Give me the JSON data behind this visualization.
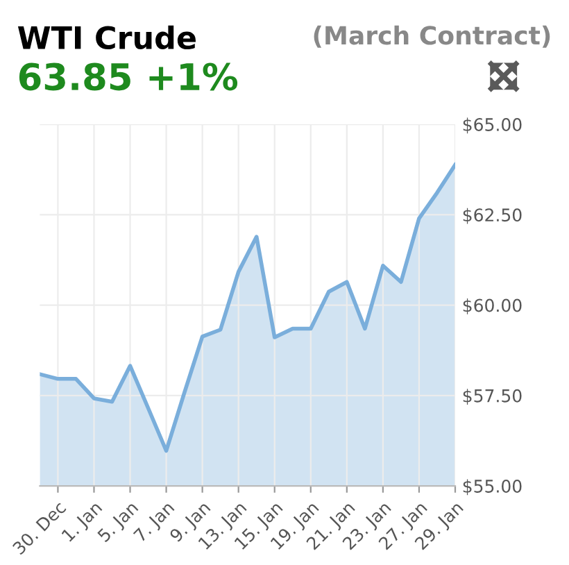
{
  "chart_data": {
    "type": "area",
    "title": "WTI Crude",
    "subtitle": "63.85 +1%",
    "annotations": [
      "(March Contract)"
    ],
    "categories": [
      null,
      "30. Dec",
      null,
      "1. Jan",
      null,
      "5. Jan",
      null,
      "7. Jan",
      null,
      "9. Jan",
      null,
      "13. Jan",
      null,
      "15. Jan",
      null,
      "19. Jan",
      null,
      "21. Jan",
      null,
      "23. Jan",
      null,
      "27. Jan",
      null,
      "29. Jan"
    ],
    "series": [
      {
        "color": "#7aaedb",
        "values": [
          58.09,
          57.96,
          57.96,
          57.42,
          57.33,
          58.32,
          57.15,
          55.97,
          57.57,
          59.13,
          59.32,
          60.92,
          61.89,
          59.11,
          59.35,
          59.35,
          60.37,
          60.64,
          59.35,
          61.09,
          60.64,
          62.4,
          63.11,
          63.88
        ]
      }
    ],
    "ylim": [
      55,
      65
    ],
    "yticks": [
      {
        "value": 55,
        "label": "$55.00"
      },
      {
        "value": 57.5,
        "label": "$57.50"
      },
      {
        "value": 60,
        "label": "$60.00"
      },
      {
        "value": 62.5,
        "label": "$62.50"
      },
      {
        "value": 65,
        "label": "$65.00"
      }
    ],
    "grid": true,
    "marker": "none",
    "line_style": "solid"
  }
}
